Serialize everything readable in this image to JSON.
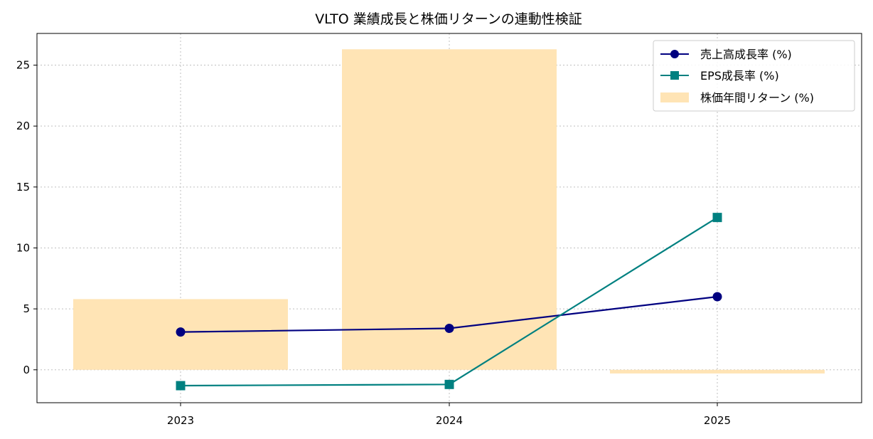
{
  "chart_data": {
    "type": "bar",
    "title": "VLTO 業績成長と株価リターンの連動性検証",
    "xlabel": "",
    "ylabel": "",
    "categories": [
      "2023",
      "2024",
      "2025"
    ],
    "ylim": [
      -2.7,
      27.6
    ],
    "yticks": [
      0,
      5,
      10,
      15,
      20,
      25
    ],
    "grid": true,
    "legend_position": "top-right",
    "series": [
      {
        "name": "売上高成長率 (%)",
        "kind": "line",
        "marker": "circle",
        "color": "#000080",
        "values": [
          3.1,
          3.4,
          6.0
        ]
      },
      {
        "name": "EPS成長率 (%)",
        "kind": "line",
        "marker": "square",
        "color": "#008080",
        "values": [
          -1.3,
          -1.2,
          12.5
        ]
      },
      {
        "name": "株価年間リターン (%)",
        "kind": "bar",
        "color": "#ffe4b5",
        "values": [
          5.8,
          26.3,
          -0.3
        ]
      }
    ]
  }
}
